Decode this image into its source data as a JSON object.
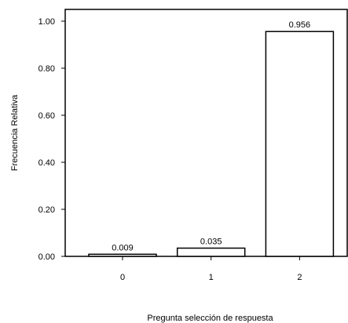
{
  "chart_data": {
    "type": "bar",
    "categories": [
      "0",
      "1",
      "2"
    ],
    "values": [
      0.009,
      0.035,
      0.956
    ],
    "data_labels": [
      "0.009",
      "0.035",
      "0.956"
    ],
    "title": "",
    "xlabel": "Pregunta selección de respuesta",
    "ylabel": "Frecuencia Relativa",
    "ylim": [
      0,
      1.05
    ],
    "yticks": [
      0,
      0.2,
      0.4,
      0.6,
      0.8,
      1.0
    ],
    "ytick_labels": [
      "0.00",
      "0.20",
      "0.40",
      "0.60",
      "0.80",
      "1.00"
    ],
    "grid": false,
    "legend": "none",
    "colors": {
      "bar_fill": "#ffffff",
      "bar_stroke": "#000000",
      "axis": "#000000",
      "background": "#ffffff"
    }
  }
}
